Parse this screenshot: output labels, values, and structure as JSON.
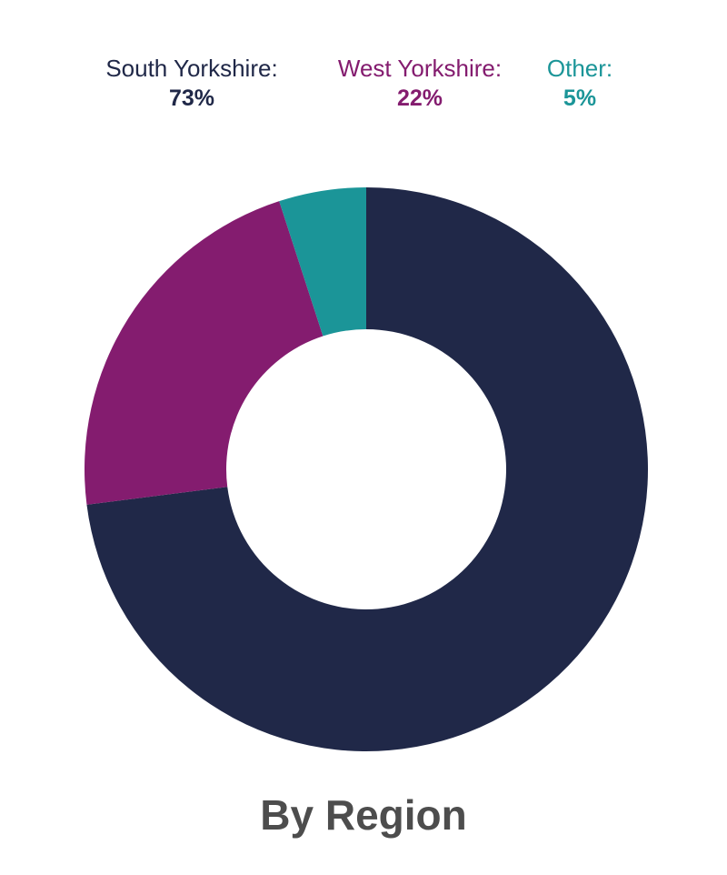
{
  "chart_data": {
    "type": "pie",
    "title": "By Region",
    "categories": [
      "South Yorkshire",
      "West Yorkshire",
      "Other"
    ],
    "values": [
      73,
      22,
      5
    ],
    "legend": [
      {
        "label": "South Yorkshire:",
        "value": "73%"
      },
      {
        "label": "West Yorkshire:",
        "value": "22%"
      },
      {
        "label": "Other:",
        "value": "5%"
      }
    ],
    "colors": [
      "#202848",
      "#841c6f",
      "#1b9598"
    ],
    "style": "donut",
    "legend_position": "top"
  }
}
